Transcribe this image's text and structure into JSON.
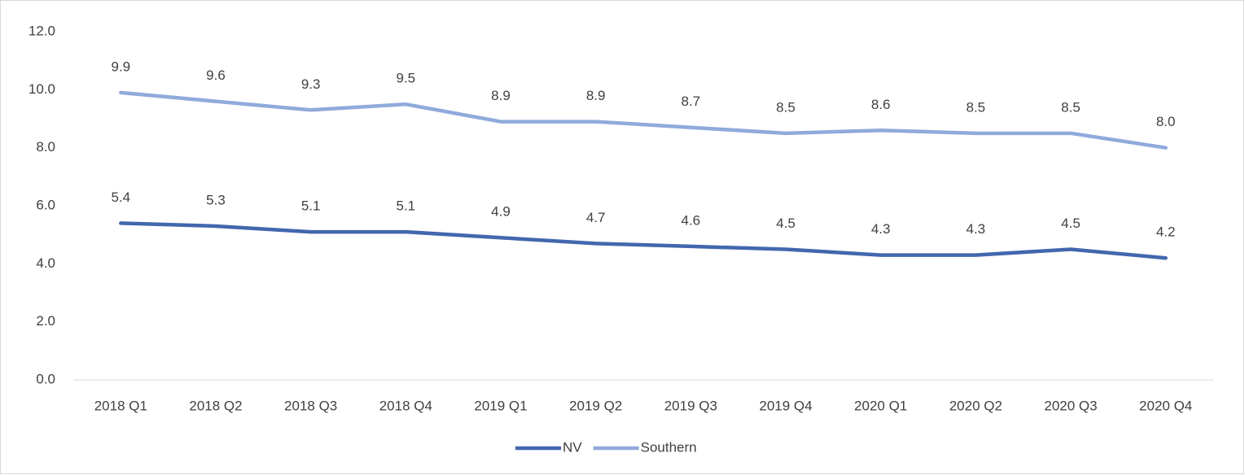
{
  "chart_data": {
    "type": "line",
    "categories": [
      "2018 Q1",
      "2018 Q2",
      "2018 Q3",
      "2018 Q4",
      "2019 Q1",
      "2019 Q2",
      "2019 Q3",
      "2019 Q4",
      "2020 Q1",
      "2020 Q2",
      "2020 Q3",
      "2020 Q4"
    ],
    "series": [
      {
        "name": "NV",
        "color": "#4267ae",
        "values": [
          5.4,
          5.3,
          5.1,
          5.1,
          4.9,
          4.7,
          4.6,
          4.5,
          4.3,
          4.3,
          4.5,
          4.2
        ],
        "value_labels": [
          "5.4",
          "5.3",
          "5.1",
          "5.1",
          "4.9",
          "4.7",
          "4.6",
          "4.5",
          "4.3",
          "4.3",
          "4.5",
          "4.2"
        ]
      },
      {
        "name": "Southern",
        "color": "#8faadc",
        "values": [
          9.9,
          9.6,
          9.3,
          9.5,
          8.9,
          8.9,
          8.7,
          8.5,
          8.6,
          8.5,
          8.5,
          8.0
        ],
        "value_labels": [
          "9.9",
          "9.6",
          "9.3",
          "9.5",
          "8.9",
          "8.9",
          "8.7",
          "8.5",
          "8.6",
          "8.5",
          "8.5",
          "8.0"
        ]
      }
    ],
    "ylim": [
      0,
      12
    ],
    "yticks": [
      {
        "value": 0,
        "label": "0.0"
      },
      {
        "value": 2,
        "label": "2.0"
      },
      {
        "value": 4,
        "label": "4.0"
      },
      {
        "value": 6,
        "label": "6.0"
      },
      {
        "value": 8,
        "label": "8.0"
      },
      {
        "value": 10,
        "label": "10.0"
      },
      {
        "value": 12,
        "label": "12.0"
      }
    ],
    "grid": false,
    "legend": "bottom"
  }
}
